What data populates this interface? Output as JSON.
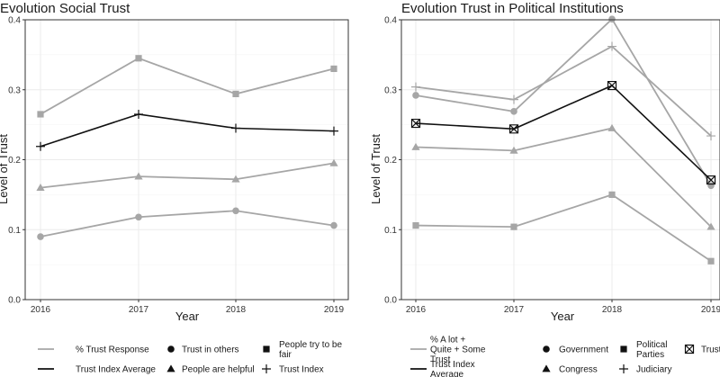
{
  "chart_data": [
    {
      "type": "line",
      "title": "Evolution Social Trust",
      "xlabel": "Year",
      "ylabel": "Level of Trust",
      "x": [
        "2016",
        "2017",
        "2018",
        "2019"
      ],
      "ylim": [
        0,
        0.4
      ],
      "yticks": [
        "0.0",
        "0.1",
        "0.2",
        "0.3",
        "0.4"
      ],
      "grid": true,
      "series": [
        {
          "name": "People try to be fair",
          "kind": "response",
          "marker": "square",
          "values": [
            0.265,
            0.345,
            0.294,
            0.33
          ]
        },
        {
          "name": "Trust Index",
          "kind": "index",
          "marker": "plus",
          "values": [
            0.219,
            0.265,
            0.245,
            0.241
          ]
        },
        {
          "name": "People are helpful",
          "kind": "response",
          "marker": "triangle",
          "values": [
            0.16,
            0.176,
            0.172,
            0.195
          ]
        },
        {
          "name": "Trust in others",
          "kind": "response",
          "marker": "circle",
          "values": [
            0.09,
            0.118,
            0.127,
            0.106
          ]
        }
      ],
      "legend": {
        "linetypes": [
          {
            "label": "% Trust Response",
            "kind": "response"
          },
          {
            "label": "Trust Index Average",
            "kind": "index"
          }
        ],
        "markers": [
          {
            "marker": "circle",
            "label": "Trust in others"
          },
          {
            "marker": "triangle",
            "label": "People are helpful"
          },
          {
            "marker": "square",
            "label": "People try to be fair"
          },
          {
            "marker": "plus",
            "label": "Trust Index"
          }
        ]
      }
    },
    {
      "type": "line",
      "title": "Evolution Trust in Political Institutions",
      "xlabel": "Year",
      "ylabel": "Level of Trust",
      "x": [
        "2016",
        "2017",
        "2018",
        "2019"
      ],
      "ylim": [
        0,
        0.4
      ],
      "yticks": [
        "0.0",
        "0.1",
        "0.2",
        "0.3",
        "0.4"
      ],
      "grid": true,
      "series": [
        {
          "name": "Judiciary",
          "kind": "response",
          "marker": "plus",
          "values": [
            0.304,
            0.286,
            0.362,
            0.234
          ]
        },
        {
          "name": "Government",
          "kind": "response",
          "marker": "circle",
          "values": [
            0.292,
            0.269,
            0.401,
            0.163
          ]
        },
        {
          "name": "Trust Index",
          "kind": "index",
          "marker": "boxx",
          "values": [
            0.252,
            0.244,
            0.306,
            0.171
          ]
        },
        {
          "name": "Congress",
          "kind": "response",
          "marker": "triangle",
          "values": [
            0.218,
            0.213,
            0.245,
            0.104
          ]
        },
        {
          "name": "Political Parties",
          "kind": "response",
          "marker": "square",
          "values": [
            0.106,
            0.104,
            0.15,
            0.055
          ]
        }
      ],
      "legend": {
        "linetypes": [
          {
            "label": "% A lot + Quite + Some Trust",
            "kind": "response"
          },
          {
            "label": "Trust Index Average",
            "kind": "index"
          }
        ],
        "markers": [
          {
            "marker": "circle",
            "label": "Government"
          },
          {
            "marker": "triangle",
            "label": "Congress"
          },
          {
            "marker": "square",
            "label": "Political Parties"
          },
          {
            "marker": "plus",
            "label": "Judiciary"
          },
          {
            "marker": "boxx",
            "label": "Trust Index"
          }
        ]
      }
    }
  ],
  "colors": {
    "response": "#a6a6a6",
    "index": "#111111",
    "grid": "#ebebeb",
    "frame": "#333333"
  }
}
